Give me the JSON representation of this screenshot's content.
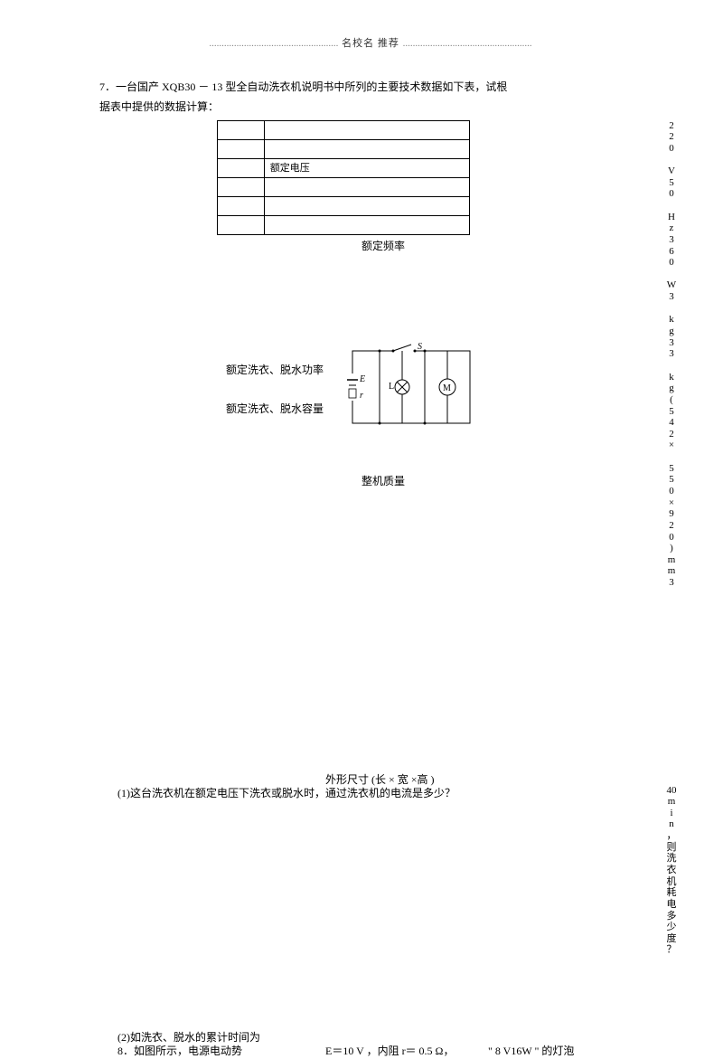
{
  "header": {
    "left_dots": "....................................................",
    "title": "名校名 推荐",
    "right_dots": "...................................................."
  },
  "problem7": {
    "intro_l1": "7．一台国产 XQB30 － 13 型全自动洗衣机说明书中所列的主要技术数据如下表，试根",
    "intro_l2": "据表中提供的数据计算：",
    "labels": {
      "voltage": "额定电压",
      "frequency": "额定频率",
      "power": "额定洗衣、脱水功率",
      "capacity": "额定洗衣、脱水容量",
      "mass": "整机质量",
      "size": "外形尺寸 (长 × 宽 ×高 )"
    },
    "q1": "(1)这台洗衣机在额定电压下洗衣或脱水时，通过洗衣机的电流是多少？",
    "q2": "(2)如洗衣、脱水的累计时间为"
  },
  "right_col_values": [
    "2",
    "2",
    "0",
    "",
    "V",
    "5",
    "0",
    "",
    "H",
    "z",
    "3",
    "6",
    "0",
    "",
    "W",
    "3",
    "",
    "k",
    "g",
    "3",
    "3",
    "",
    "k",
    "g",
    "(",
    "5",
    "4",
    "2",
    "×",
    "",
    "5",
    "5",
    "0",
    "×",
    "9",
    "2",
    "0",
    ")",
    "m",
    "m",
    "3"
  ],
  "right_col_values2": [
    "40",
    "m",
    "i",
    "n",
    "，",
    "则",
    "洗",
    "衣",
    "机",
    "耗",
    "电",
    "多",
    "少",
    "度",
    "？"
  ],
  "problem8": {
    "a": "8．如图所示，电源电动势",
    "b": "E＝10 V ，内阻  r＝ 0.5 Ω，",
    "c": "\" 8 V16W \" 的灯泡"
  },
  "circuit": {
    "s_label": "S",
    "e_label": "E",
    "r_label": "r",
    "l_label": "L",
    "m_label": "M"
  }
}
